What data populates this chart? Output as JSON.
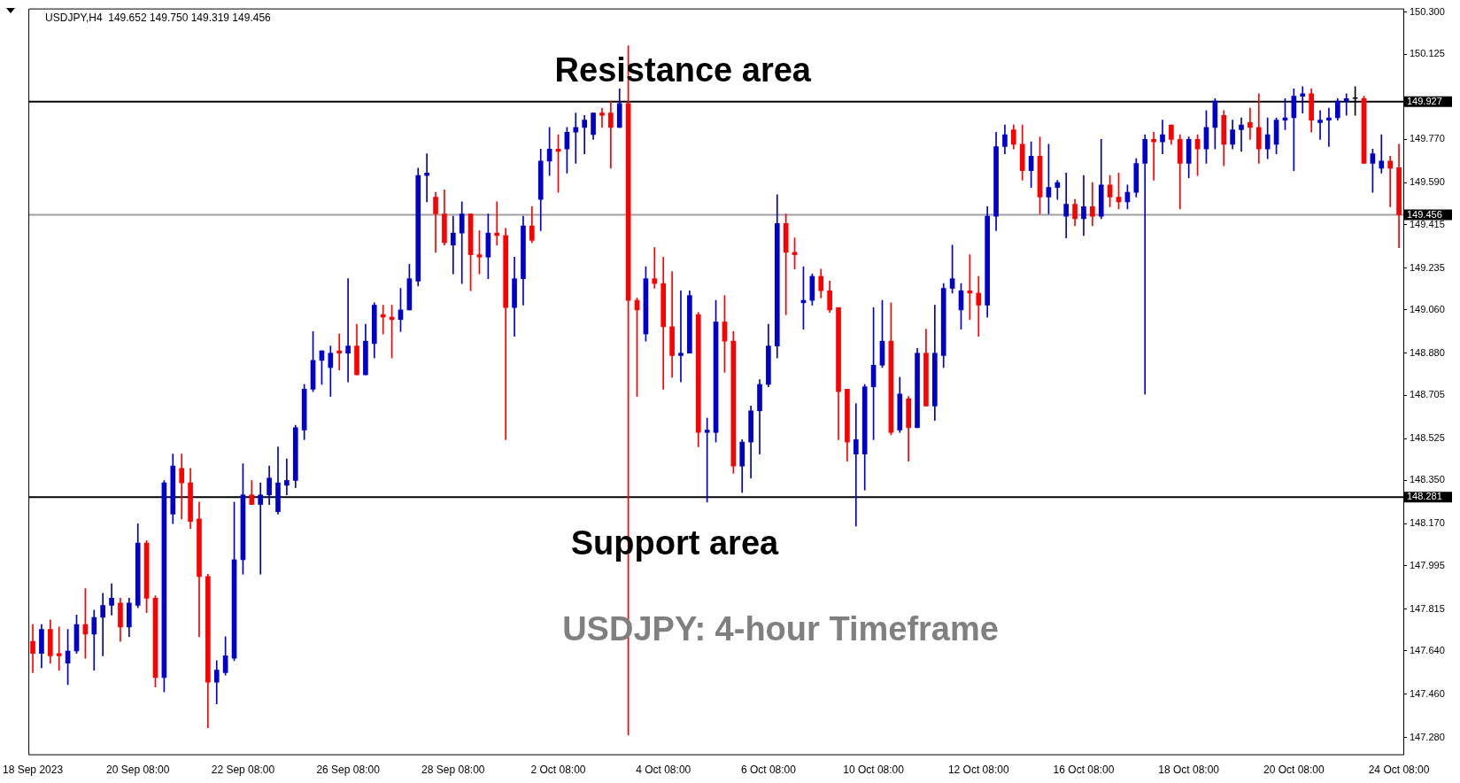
{
  "chart_data": {
    "type": "candlestick",
    "title": "USDJPY,H4  149.652 149.750 149.319 149.456",
    "categories": [
      "18 Sep 2023",
      null,
      null,
      null,
      null,
      null,
      null,
      null,
      null,
      null,
      null,
      null,
      "20 Sep 08:00",
      null,
      null,
      null,
      null,
      null,
      null,
      null,
      null,
      null,
      null,
      null,
      "22 Sep 08:00",
      null,
      null,
      null,
      null,
      null,
      null,
      null,
      null,
      null,
      null,
      null,
      "26 Sep 08:00",
      null,
      null,
      null,
      null,
      null,
      null,
      null,
      null,
      null,
      null,
      null,
      "28 Sep 08:00",
      null,
      null,
      null,
      null,
      null,
      null,
      null,
      null,
      null,
      null,
      null,
      "2 Oct 08:00",
      null,
      null,
      null,
      null,
      null,
      null,
      null,
      null,
      null,
      null,
      null,
      "4 Oct 08:00",
      null,
      null,
      null,
      null,
      null,
      null,
      null,
      null,
      null,
      null,
      null,
      "6 Oct 08:00",
      null,
      null,
      null,
      null,
      null,
      null,
      null,
      null,
      null,
      null,
      null,
      "10 Oct 08:00",
      null,
      null,
      null,
      null,
      null,
      null,
      null,
      null,
      null,
      null,
      null,
      "12 Oct 08:00",
      null,
      null,
      null,
      null,
      null,
      null,
      null,
      null,
      null,
      null,
      null,
      "16 Oct 08:00",
      null,
      null,
      null,
      null,
      null,
      null,
      null,
      null,
      null,
      null,
      null,
      "18 Oct 08:00",
      null,
      null,
      null,
      null,
      null,
      null,
      null,
      null,
      null,
      null,
      null,
      "20 Oct 08:00",
      null,
      null,
      null,
      null,
      null,
      null,
      null,
      null,
      null,
      null,
      null,
      "24 Oct 08:00"
    ],
    "ohlc": [
      [
        147.68,
        147.75,
        147.55,
        147.63
      ],
      [
        147.63,
        147.75,
        147.57,
        147.73
      ],
      [
        147.73,
        147.77,
        147.59,
        147.62
      ],
      [
        147.63,
        147.74,
        147.56,
        147.62
      ],
      [
        147.59,
        147.73,
        147.5,
        147.64
      ],
      [
        147.64,
        147.79,
        147.63,
        147.75
      ],
      [
        147.75,
        147.9,
        147.61,
        147.71
      ],
      [
        147.71,
        147.81,
        147.56,
        147.78
      ],
      [
        147.78,
        147.88,
        147.62,
        147.83
      ],
      [
        147.83,
        147.92,
        147.79,
        147.86
      ],
      [
        147.84,
        147.86,
        147.68,
        147.74
      ],
      [
        147.74,
        147.86,
        147.7,
        147.84
      ],
      [
        147.83,
        148.17,
        147.82,
        148.09
      ],
      [
        148.09,
        148.1,
        147.8,
        147.86
      ],
      [
        147.86,
        147.87,
        147.49,
        147.53
      ],
      [
        147.53,
        148.35,
        147.47,
        148.34
      ],
      [
        148.21,
        148.46,
        148.17,
        148.41
      ],
      [
        148.4,
        148.46,
        148.19,
        148.34
      ],
      [
        148.34,
        148.4,
        148.15,
        148.18
      ],
      [
        148.19,
        148.26,
        147.7,
        147.95
      ],
      [
        147.95,
        147.96,
        147.32,
        147.51
      ],
      [
        147.51,
        147.6,
        147.42,
        147.56
      ],
      [
        147.55,
        147.7,
        147.54,
        147.62
      ],
      [
        147.61,
        148.26,
        147.6,
        148.02
      ],
      [
        148.02,
        148.42,
        147.96,
        148.29
      ],
      [
        148.29,
        148.35,
        148.25,
        148.25
      ],
      [
        148.25,
        148.34,
        147.96,
        148.29
      ],
      [
        148.29,
        148.41,
        148.25,
        148.36
      ],
      [
        148.22,
        148.49,
        148.21,
        148.34
      ],
      [
        148.33,
        148.44,
        148.29,
        148.35
      ],
      [
        148.35,
        148.58,
        148.32,
        148.57
      ],
      [
        148.56,
        148.75,
        148.52,
        148.73
      ],
      [
        148.73,
        148.97,
        148.72,
        148.85
      ],
      [
        148.85,
        148.89,
        148.75,
        148.89
      ],
      [
        148.82,
        148.91,
        148.7,
        148.88
      ],
      [
        148.89,
        148.96,
        148.81,
        148.88
      ],
      [
        148.88,
        149.19,
        148.76,
        148.91
      ],
      [
        148.91,
        149.0,
        148.79,
        148.79
      ],
      [
        148.79,
        149.0,
        148.79,
        148.93
      ],
      [
        148.92,
        149.09,
        148.86,
        149.08
      ],
      [
        149.04,
        149.08,
        148.96,
        149.03
      ],
      [
        149.03,
        149.08,
        148.86,
        149.02
      ],
      [
        149.02,
        149.15,
        148.97,
        149.06
      ],
      [
        149.06,
        149.25,
        149.06,
        149.19
      ],
      [
        149.18,
        149.65,
        149.16,
        149.62
      ],
      [
        149.62,
        149.71,
        149.51,
        149.63
      ],
      [
        149.53,
        149.55,
        149.3,
        149.46
      ],
      [
        149.46,
        149.56,
        149.33,
        149.34
      ],
      [
        149.33,
        149.45,
        149.21,
        149.38
      ],
      [
        149.38,
        149.51,
        149.17,
        149.46
      ],
      [
        149.46,
        149.46,
        149.14,
        149.29
      ],
      [
        149.29,
        149.39,
        149.21,
        149.28
      ],
      [
        149.28,
        149.46,
        149.19,
        149.38
      ],
      [
        149.38,
        149.51,
        149.33,
        149.37
      ],
      [
        149.37,
        149.4,
        148.52,
        149.07
      ],
      [
        149.07,
        149.28,
        148.95,
        149.19
      ],
      [
        149.19,
        149.45,
        149.08,
        149.41
      ],
      [
        149.41,
        149.49,
        149.34,
        149.35
      ],
      [
        149.52,
        149.73,
        149.39,
        149.68
      ],
      [
        149.68,
        149.82,
        149.62,
        149.73
      ],
      [
        149.73,
        149.79,
        149.55,
        149.72
      ],
      [
        149.73,
        149.82,
        149.63,
        149.8
      ],
      [
        149.8,
        149.88,
        149.67,
        149.82
      ],
      [
        149.82,
        149.87,
        149.71,
        149.85
      ],
      [
        149.79,
        149.88,
        149.77,
        149.88
      ],
      [
        149.88,
        149.9,
        149.82,
        149.87
      ],
      [
        149.88,
        149.93,
        149.65,
        149.82
      ],
      [
        149.82,
        149.98,
        149.82,
        149.92
      ],
      [
        149.92,
        150.16,
        147.29,
        149.1
      ],
      [
        149.1,
        149.11,
        148.7,
        149.06
      ],
      [
        148.96,
        149.24,
        148.93,
        149.19
      ],
      [
        149.19,
        149.32,
        149.15,
        149.17
      ],
      [
        149.17,
        149.28,
        148.73,
        148.99
      ],
      [
        148.99,
        149.22,
        148.78,
        148.87
      ],
      [
        148.87,
        149.14,
        148.76,
        148.88
      ],
      [
        148.88,
        149.14,
        148.88,
        149.12
      ],
      [
        149.04,
        149.05,
        148.49,
        148.55
      ],
      [
        148.55,
        148.61,
        148.26,
        148.56
      ],
      [
        148.55,
        149.1,
        148.51,
        149.01
      ],
      [
        149.01,
        149.12,
        148.8,
        148.93
      ],
      [
        148.93,
        148.97,
        148.38,
        148.41
      ],
      [
        148.41,
        148.52,
        148.3,
        148.51
      ],
      [
        148.51,
        148.66,
        148.36,
        148.64
      ],
      [
        148.64,
        148.77,
        148.46,
        148.75
      ],
      [
        148.75,
        149.0,
        148.74,
        148.91
      ],
      [
        148.91,
        149.54,
        148.86,
        149.42
      ],
      [
        149.42,
        149.46,
        149.04,
        149.3
      ],
      [
        149.3,
        149.36,
        149.23,
        149.29
      ],
      [
        149.09,
        149.24,
        148.98,
        149.1
      ],
      [
        149.1,
        149.21,
        149.08,
        149.2
      ],
      [
        149.2,
        149.23,
        149.11,
        149.14
      ],
      [
        149.14,
        149.18,
        149.05,
        149.06
      ],
      [
        149.07,
        149.07,
        148.52,
        148.72
      ],
      [
        148.73,
        148.73,
        148.43,
        148.51
      ],
      [
        148.46,
        148.67,
        148.16,
        148.52
      ],
      [
        148.46,
        148.75,
        148.31,
        148.74
      ],
      [
        148.74,
        149.07,
        148.52,
        148.83
      ],
      [
        148.83,
        149.1,
        148.82,
        148.93
      ],
      [
        148.93,
        149.09,
        148.54,
        148.55
      ],
      [
        148.56,
        148.78,
        148.55,
        148.71
      ],
      [
        148.69,
        148.7,
        148.43,
        148.57
      ],
      [
        148.57,
        148.9,
        148.57,
        148.88
      ],
      [
        148.88,
        148.98,
        148.66,
        148.66
      ],
      [
        148.66,
        149.08,
        148.6,
        148.88
      ],
      [
        148.87,
        149.17,
        148.82,
        149.15
      ],
      [
        149.15,
        149.33,
        149.13,
        149.19
      ],
      [
        149.06,
        149.17,
        148.98,
        149.14
      ],
      [
        149.14,
        149.29,
        149.02,
        149.13
      ],
      [
        149.13,
        149.2,
        148.95,
        149.08
      ],
      [
        149.08,
        149.49,
        149.03,
        149.45
      ],
      [
        149.45,
        149.8,
        149.39,
        149.74
      ],
      [
        149.74,
        149.83,
        149.71,
        149.79
      ],
      [
        149.81,
        149.83,
        149.73,
        149.75
      ],
      [
        149.75,
        149.83,
        149.6,
        149.64
      ],
      [
        149.64,
        149.76,
        149.57,
        149.7
      ],
      [
        149.7,
        149.78,
        149.46,
        149.53
      ],
      [
        149.53,
        149.75,
        149.46,
        149.57
      ],
      [
        149.57,
        149.6,
        149.52,
        149.59
      ],
      [
        149.45,
        149.63,
        149.36,
        149.5
      ],
      [
        149.5,
        149.52,
        149.41,
        149.44
      ],
      [
        149.44,
        149.62,
        149.37,
        149.49
      ],
      [
        149.49,
        149.59,
        149.41,
        149.45
      ],
      [
        149.45,
        149.77,
        149.44,
        149.58
      ],
      [
        149.58,
        149.62,
        149.49,
        149.53
      ],
      [
        149.53,
        149.63,
        149.48,
        149.51
      ],
      [
        149.51,
        149.58,
        149.48,
        149.55
      ],
      [
        149.55,
        149.69,
        149.53,
        149.67
      ],
      [
        149.67,
        149.79,
        148.71,
        149.77
      ],
      [
        149.77,
        149.8,
        149.6,
        149.76
      ],
      [
        149.76,
        149.85,
        149.71,
        149.79
      ],
      [
        149.83,
        149.83,
        149.75,
        149.77
      ],
      [
        149.77,
        149.79,
        149.48,
        149.67
      ],
      [
        149.67,
        149.78,
        149.61,
        149.77
      ],
      [
        149.77,
        149.79,
        149.62,
        149.73
      ],
      [
        149.73,
        149.89,
        149.67,
        149.82
      ],
      [
        149.82,
        149.94,
        149.73,
        149.93
      ],
      [
        149.87,
        149.89,
        149.66,
        149.75
      ],
      [
        149.75,
        149.85,
        149.73,
        149.81
      ],
      [
        149.81,
        149.86,
        149.72,
        149.83
      ],
      [
        149.84,
        149.9,
        149.77,
        149.82
      ],
      [
        149.82,
        149.96,
        149.67,
        149.73
      ],
      [
        149.73,
        149.86,
        149.69,
        149.79
      ],
      [
        149.75,
        149.86,
        149.71,
        149.85
      ],
      [
        149.85,
        149.94,
        149.81,
        149.86
      ],
      [
        149.86,
        149.98,
        149.64,
        149.95
      ],
      [
        149.95,
        149.99,
        149.88,
        149.96
      ],
      [
        149.96,
        149.98,
        149.8,
        149.85
      ],
      [
        149.84,
        149.89,
        149.77,
        149.85
      ],
      [
        149.85,
        149.9,
        149.74,
        149.86
      ],
      [
        149.86,
        149.94,
        149.85,
        149.93
      ],
      [
        149.93,
        149.96,
        149.87,
        149.94
      ],
      [
        149.94,
        149.99,
        149.87,
        149.94
      ],
      [
        149.94,
        149.95,
        149.67,
        149.67
      ],
      [
        149.67,
        149.73,
        149.55,
        149.71
      ],
      [
        149.65,
        149.79,
        149.63,
        149.68
      ],
      [
        149.68,
        149.7,
        149.49,
        149.65
      ],
      [
        149.652,
        149.75,
        149.319,
        149.456
      ]
    ],
    "colors": [
      "#ff0000",
      "#0000cd",
      "#ff0000",
      "#ff0000",
      "#0000cd",
      "#0000cd",
      "#ff0000",
      "#0000cd",
      "#0000cd",
      "#0000cd",
      "#ff0000",
      "#0000cd",
      "#0000cd",
      "#ff0000",
      "#ff0000",
      "#0000cd",
      "#0000cd",
      "#ff0000",
      "#ff0000",
      "#ff0000",
      "#ff0000",
      "#0000cd",
      "#0000cd",
      "#0000cd",
      "#0000cd",
      "#ff0000",
      "#0000cd",
      "#0000cd",
      "#0000cd",
      "#0000cd",
      "#0000cd",
      "#0000cd",
      "#0000cd",
      "#0000cd",
      "#0000cd",
      "#ff0000",
      "#0000cd",
      "#ff0000",
      "#0000cd",
      "#0000cd",
      "#ff0000",
      "#ff0000",
      "#0000cd",
      "#0000cd",
      "#0000cd",
      "#0000cd",
      "#ff0000",
      "#ff0000",
      "#0000cd",
      "#0000cd",
      "#ff0000",
      "#ff0000",
      "#0000cd",
      "#ff0000",
      "#ff0000",
      "#0000cd",
      "#0000cd",
      "#ff0000",
      "#0000cd",
      "#0000cd",
      "#ff0000",
      "#0000cd",
      "#0000cd",
      "#0000cd",
      "#0000cd",
      "#ff0000",
      "#ff0000",
      "#0000cd",
      "#ff0000",
      "#ff0000",
      "#0000cd",
      "#ff0000",
      "#ff0000",
      "#ff0000",
      "#0000cd",
      "#0000cd",
      "#ff0000",
      "#0000cd",
      "#0000cd",
      "#ff0000",
      "#ff0000",
      "#0000cd",
      "#0000cd",
      "#0000cd",
      "#0000cd",
      "#0000cd",
      "#ff0000",
      "#ff0000",
      "#0000cd",
      "#0000cd",
      "#ff0000",
      "#ff0000",
      "#ff0000",
      "#ff0000",
      "#0000cd",
      "#0000cd",
      "#0000cd",
      "#0000cd",
      "#ff0000",
      "#0000cd",
      "#ff0000",
      "#0000cd",
      "#ff0000",
      "#0000cd",
      "#0000cd",
      "#0000cd",
      "#0000cd",
      "#ff0000",
      "#ff0000",
      "#0000cd",
      "#0000cd",
      "#0000cd",
      "#ff0000",
      "#ff0000",
      "#0000cd",
      "#ff0000",
      "#0000cd",
      "#0000cd",
      "#0000cd",
      "#ff0000",
      "#0000cd",
      "#ff0000",
      "#0000cd",
      "#ff0000",
      "#ff0000",
      "#0000cd",
      "#0000cd",
      "#0000cd",
      "#ff0000",
      "#0000cd",
      "#ff0000",
      "#ff0000",
      "#0000cd",
      "#ff0000",
      "#0000cd",
      "#0000cd",
      "#ff0000",
      "#0000cd",
      "#0000cd",
      "#ff0000",
      "#ff0000",
      "#0000cd",
      "#0000cd",
      "#0000cd",
      "#0000cd",
      "#0000cd",
      "#ff0000",
      "#0000cd",
      "#0000cd",
      "#0000cd",
      "#0000cd",
      "#000000",
      "#ff0000",
      "#0000cd",
      "#0000cd",
      "#ff0000",
      "#ff0000"
    ],
    "ylim": [
      147.21,
      150.315
    ],
    "yticks": [
      {
        "value": 150.3,
        "label": "150.300"
      },
      {
        "value": 150.125,
        "label": "150.125"
      },
      {
        "value": 149.945,
        "label": null
      },
      {
        "value": 149.77,
        "label": "149.770"
      },
      {
        "value": 149.59,
        "label": "149.590"
      },
      {
        "value": 149.415,
        "label": "149.415"
      },
      {
        "value": 149.235,
        "label": "149.235"
      },
      {
        "value": 149.06,
        "label": "149.060"
      },
      {
        "value": 148.88,
        "label": "148.880"
      },
      {
        "value": 148.705,
        "label": "148.705"
      },
      {
        "value": 148.525,
        "label": "148.525"
      },
      {
        "value": 148.35,
        "label": "148.350"
      },
      {
        "value": 148.17,
        "label": "148.170"
      },
      {
        "value": 147.995,
        "label": "147.995"
      },
      {
        "value": 147.815,
        "label": "147.815"
      },
      {
        "value": 147.64,
        "label": "147.640"
      },
      {
        "value": 147.46,
        "label": "147.460"
      },
      {
        "value": 147.28,
        "label": "147.280"
      }
    ],
    "ref_lines": [
      {
        "axis": "y",
        "value": 149.927,
        "label": "149.927",
        "color": "#000000"
      },
      {
        "axis": "y",
        "value": 148.281,
        "label": "148.281",
        "color": "#000000"
      },
      {
        "axis": "y",
        "value": 149.456,
        "label": "149.456",
        "color": "#a0a0a0"
      }
    ],
    "annotations": [
      "Resistance area",
      "Support area",
      "USDJPY: 4-hour Timeframe"
    ]
  }
}
